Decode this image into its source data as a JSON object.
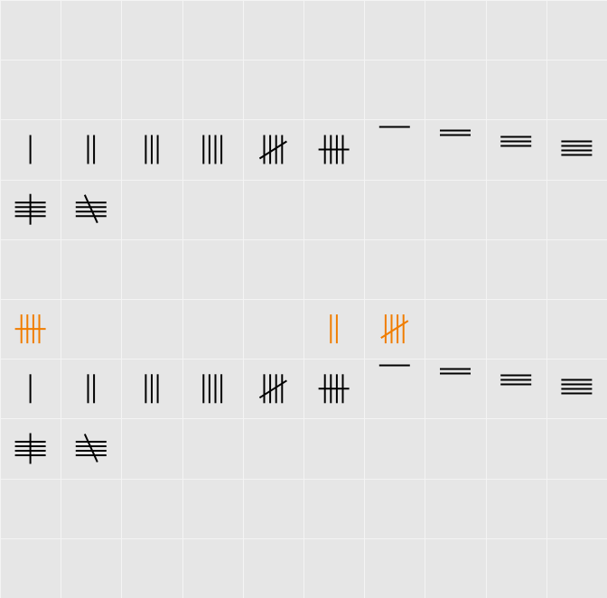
{
  "grid": {
    "columns": 10,
    "rows": 10,
    "background_color": "#e6e6e6",
    "gridline_color": "#f4f4f4"
  },
  "colors": {
    "default": "#000000",
    "highlight": "#f07d00"
  },
  "cells": [
    {
      "row": 2,
      "col": 0,
      "glyph": "tally-vertical",
      "count": 1,
      "color": "default"
    },
    {
      "row": 2,
      "col": 1,
      "glyph": "tally-vertical",
      "count": 2,
      "color": "default"
    },
    {
      "row": 2,
      "col": 2,
      "glyph": "tally-vertical",
      "count": 3,
      "color": "default"
    },
    {
      "row": 2,
      "col": 3,
      "glyph": "tally-vertical",
      "count": 4,
      "color": "default"
    },
    {
      "row": 2,
      "col": 4,
      "glyph": "tally-vertical",
      "count": 5,
      "color": "default"
    },
    {
      "row": 2,
      "col": 5,
      "glyph": "tally-vertical-crossbar",
      "count": 5,
      "color": "default"
    },
    {
      "row": 2,
      "col": 6,
      "glyph": "tally-horizontal",
      "count": 1,
      "color": "default"
    },
    {
      "row": 2,
      "col": 7,
      "glyph": "tally-horizontal",
      "count": 2,
      "color": "default"
    },
    {
      "row": 2,
      "col": 8,
      "glyph": "tally-horizontal",
      "count": 3,
      "color": "default"
    },
    {
      "row": 2,
      "col": 9,
      "glyph": "tally-horizontal",
      "count": 4,
      "color": "default"
    },
    {
      "row": 3,
      "col": 0,
      "glyph": "tally-horizontal-crossbar",
      "count": 5,
      "color": "default"
    },
    {
      "row": 3,
      "col": 1,
      "glyph": "tally-horizontal",
      "count": 5,
      "color": "default"
    },
    {
      "row": 5,
      "col": 0,
      "glyph": "tally-vertical-crossbar",
      "count": 5,
      "color": "highlight"
    },
    {
      "row": 5,
      "col": 5,
      "glyph": "tally-vertical",
      "count": 2,
      "color": "highlight"
    },
    {
      "row": 5,
      "col": 6,
      "glyph": "tally-vertical",
      "count": 5,
      "color": "highlight"
    },
    {
      "row": 6,
      "col": 0,
      "glyph": "tally-vertical",
      "count": 1,
      "color": "default"
    },
    {
      "row": 6,
      "col": 1,
      "glyph": "tally-vertical",
      "count": 2,
      "color": "default"
    },
    {
      "row": 6,
      "col": 2,
      "glyph": "tally-vertical",
      "count": 3,
      "color": "default"
    },
    {
      "row": 6,
      "col": 3,
      "glyph": "tally-vertical",
      "count": 4,
      "color": "default"
    },
    {
      "row": 6,
      "col": 4,
      "glyph": "tally-vertical",
      "count": 5,
      "color": "default"
    },
    {
      "row": 6,
      "col": 5,
      "glyph": "tally-vertical-crossbar",
      "count": 5,
      "color": "default"
    },
    {
      "row": 6,
      "col": 6,
      "glyph": "tally-horizontal",
      "count": 1,
      "color": "default"
    },
    {
      "row": 6,
      "col": 7,
      "glyph": "tally-horizontal",
      "count": 2,
      "color": "default"
    },
    {
      "row": 6,
      "col": 8,
      "glyph": "tally-horizontal",
      "count": 3,
      "color": "default"
    },
    {
      "row": 6,
      "col": 9,
      "glyph": "tally-horizontal",
      "count": 4,
      "color": "default"
    },
    {
      "row": 7,
      "col": 0,
      "glyph": "tally-horizontal-crossbar",
      "count": 5,
      "color": "default"
    },
    {
      "row": 7,
      "col": 1,
      "glyph": "tally-horizontal",
      "count": 5,
      "color": "default"
    }
  ]
}
